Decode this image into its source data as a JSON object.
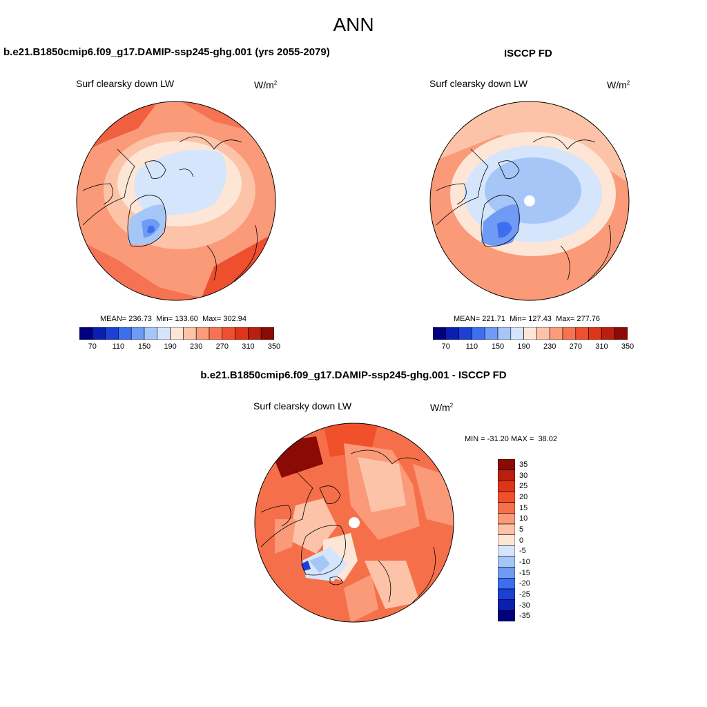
{
  "page_title": "ANN",
  "panel_left": {
    "title": "b.e21.B1850cmip6.f09_g17.DAMIP-ssp245-ghg.001 (yrs 2055-2079)",
    "variable": "Surf clearsky down LW",
    "units_base": "W/m",
    "units_exp": "2",
    "mean_label": "MEAN=",
    "mean": "236.73",
    "min_label": "Min=",
    "min": "133.60",
    "max_label": "Max=",
    "max": "302.94"
  },
  "panel_right": {
    "title": "ISCCP FD",
    "variable": "Surf clearsky down LW",
    "units_base": "W/m",
    "units_exp": "2",
    "mean_label": "MEAN=",
    "mean": "221.71",
    "min_label": "Min=",
    "min": "127.43",
    "max_label": "Max=",
    "max": "277.76"
  },
  "panel_diff": {
    "title": "b.e21.B1850cmip6.f09_g17.DAMIP-ssp245-ghg.001 - ISCCP FD",
    "variable": "Surf clearsky down LW",
    "units_base": "W/m",
    "units_exp": "2",
    "min_label": "MIN =",
    "min": "-31.20",
    "max_label": "MAX =",
    "max": "38.02"
  },
  "colorbar_main": {
    "colors": [
      "#00007f",
      "#0a1fb0",
      "#1d3fd6",
      "#3b6ff0",
      "#6f9bf4",
      "#a6c6f8",
      "#d5e5fb",
      "#fde6d6",
      "#fcc3a8",
      "#fa9b7a",
      "#f57352",
      "#ee4f2e",
      "#de3519",
      "#b81f0e",
      "#8b0a05"
    ],
    "labels": [
      "70",
      "110",
      "150",
      "190",
      "230",
      "270",
      "310",
      "350"
    ]
  },
  "colorbar_diff": {
    "colors": [
      "#8b0a05",
      "#b81f0e",
      "#de3519",
      "#f0502a",
      "#f5704a",
      "#fa9a78",
      "#fcc3a8",
      "#fde6d6",
      "#d5e5fb",
      "#a6c6f8",
      "#6f9bf4",
      "#3b6ff0",
      "#1d3fd6",
      "#0a1fb0",
      "#00007f"
    ],
    "labels": [
      "35",
      "30",
      "25",
      "20",
      "15",
      "10",
      "5",
      "0",
      "-5",
      "-10",
      "-15",
      "-20",
      "-25",
      "-30",
      "-35"
    ]
  }
}
